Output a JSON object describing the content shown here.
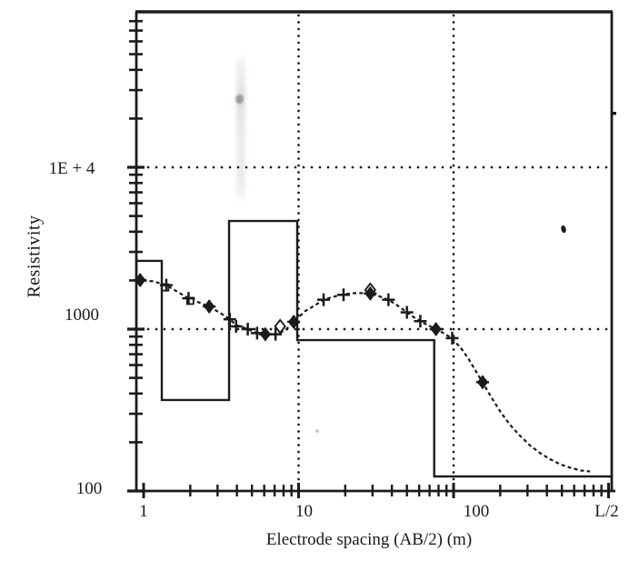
{
  "figure": {
    "background_color": "#ffffff",
    "ink_color": "#1b1b1b"
  },
  "chart_data": {
    "type": "line",
    "title": "",
    "xlabel": "Electrode spacing (AB/2) (m)",
    "ylabel": "Resistivity",
    "x_scale": "log",
    "y_scale": "log",
    "xlim": [
      0.9,
      1050
    ],
    "ylim": [
      100,
      91000
    ],
    "grid": {
      "style": "dotted",
      "x_gridlines_at": [
        10,
        100
      ],
      "y_gridlines_at": [
        1000,
        10000
      ]
    },
    "x_tick_labels": [
      {
        "value": 1,
        "label": "1"
      },
      {
        "value": 10,
        "label": "10"
      },
      {
        "value": 100,
        "label": "100"
      },
      {
        "value": 1000,
        "label": "L/2"
      }
    ],
    "y_tick_labels": [
      {
        "value": 10000,
        "label": "1E + 4"
      },
      {
        "value": 1000,
        "label": "1000"
      },
      {
        "value": 100,
        "label": "100"
      }
    ],
    "series": [
      {
        "name": "observed-apparent-resistivity",
        "marker": "plus",
        "line": "none",
        "points": [
          [
            0.95,
            2010
          ],
          [
            1.4,
            1870
          ],
          [
            1.95,
            1550
          ],
          [
            2.65,
            1380
          ],
          [
            3.6,
            1150
          ],
          [
            3.95,
            1040
          ],
          [
            4.7,
            1000
          ],
          [
            5.4,
            945
          ],
          [
            6.1,
            930
          ],
          [
            7.1,
            930
          ],
          [
            9.3,
            1110
          ],
          [
            14.5,
            1520
          ],
          [
            19.5,
            1630
          ],
          [
            29,
            1660
          ],
          [
            38,
            1520
          ],
          [
            50,
            1270
          ],
          [
            61,
            1120
          ],
          [
            77,
            1000
          ],
          [
            98,
            880
          ],
          [
            154,
            470
          ]
        ]
      },
      {
        "name": "computed-model-curve",
        "marker": "none",
        "line": "dashed",
        "points": [
          [
            0.9,
            2010
          ],
          [
            1.15,
            1975
          ],
          [
            1.4,
            1870
          ],
          [
            1.95,
            1550
          ],
          [
            2.65,
            1380
          ],
          [
            3.2,
            1240
          ],
          [
            3.6,
            1150
          ],
          [
            3.95,
            1060
          ],
          [
            4.7,
            1000
          ],
          [
            5.4,
            945
          ],
          [
            6.1,
            925
          ],
          [
            7.1,
            925
          ],
          [
            8.2,
            985
          ],
          [
            9.3,
            1110
          ],
          [
            11,
            1290
          ],
          [
            13,
            1420
          ],
          [
            14.5,
            1520
          ],
          [
            17,
            1590
          ],
          [
            19.5,
            1640
          ],
          [
            23,
            1670
          ],
          [
            26,
            1670
          ],
          [
            29,
            1655
          ],
          [
            33,
            1600
          ],
          [
            38,
            1520
          ],
          [
            44,
            1390
          ],
          [
            50,
            1270
          ],
          [
            55,
            1190
          ],
          [
            61,
            1120
          ],
          [
            68,
            1060
          ],
          [
            77,
            1000
          ],
          [
            87,
            940
          ],
          [
            98,
            875
          ],
          [
            112,
            760
          ],
          [
            125,
            655
          ],
          [
            140,
            545
          ],
          [
            154,
            470
          ],
          [
            175,
            380
          ],
          [
            200,
            310
          ],
          [
            230,
            258
          ],
          [
            265,
            222
          ],
          [
            310,
            192
          ],
          [
            360,
            172
          ],
          [
            420,
            157
          ],
          [
            490,
            146
          ],
          [
            570,
            139
          ],
          [
            660,
            134
          ],
          [
            760,
            132
          ]
        ]
      },
      {
        "name": "layer-model-step",
        "marker": "none",
        "line": "solid-step",
        "layer_boundaries_m": [
          1.31,
          3.56,
          9.8,
          75
        ],
        "layer_resistivities": [
          2640,
          365,
          4660,
          856,
          123
        ]
      }
    ],
    "special_markers": {
      "filled_diamond": [
        [
          0.95,
          2010
        ],
        [
          2.65,
          1380
        ],
        [
          6.1,
          930
        ],
        [
          9.3,
          1110
        ],
        [
          29,
          1660
        ],
        [
          77,
          1000
        ],
        [
          154,
          470
        ]
      ],
      "open_diamond": [
        [
          7.6,
          1040
        ],
        [
          29,
          1745
        ]
      ],
      "open_square": [
        [
          1.38,
          1810
        ],
        [
          2.0,
          1495
        ]
      ]
    },
    "legend": "none"
  }
}
